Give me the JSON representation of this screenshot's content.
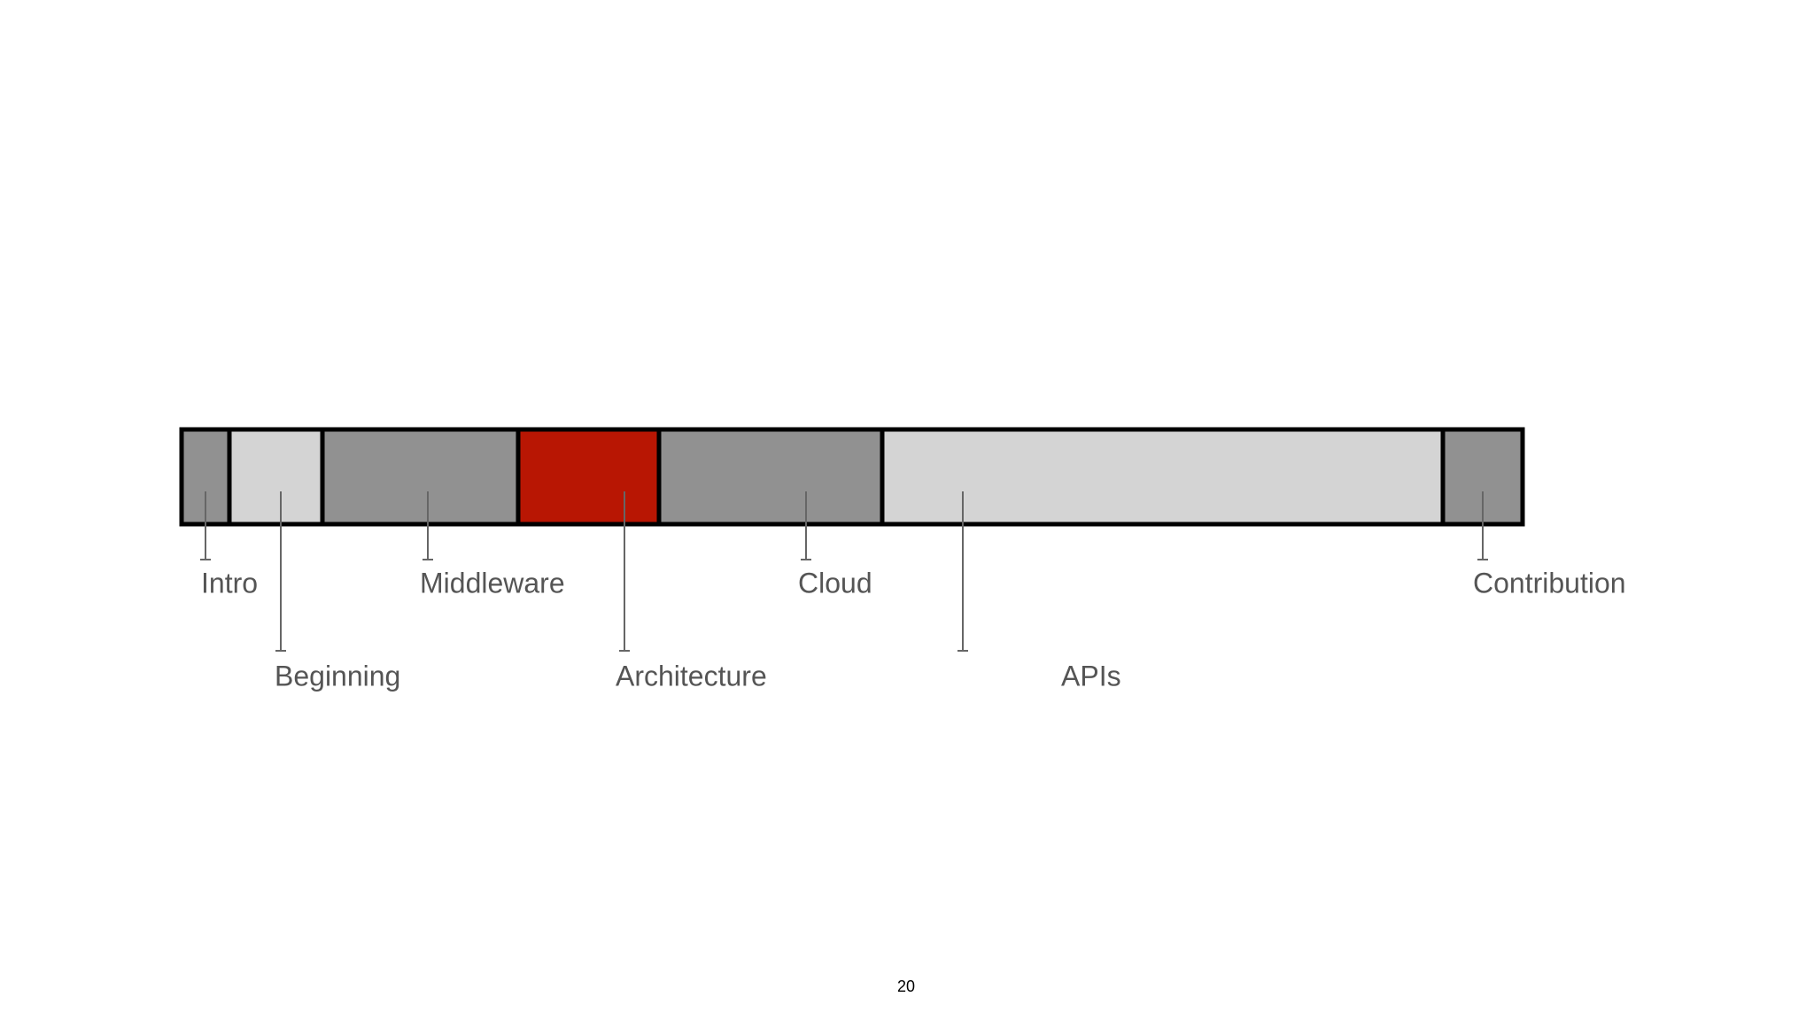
{
  "sections": [
    {
      "label": "Intro"
    },
    {
      "label": "Beginning"
    },
    {
      "label": "Middleware"
    },
    {
      "label": "Architecture"
    },
    {
      "label": "Cloud"
    },
    {
      "label": "APIs"
    },
    {
      "label": "Contribution"
    }
  ],
  "page_number": "20"
}
